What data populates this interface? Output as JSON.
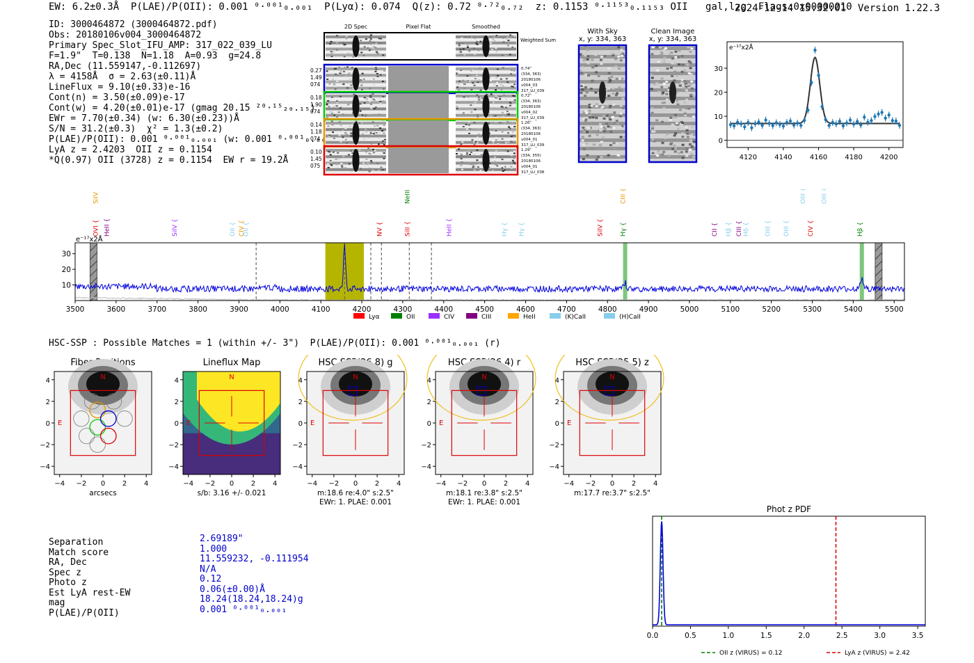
{
  "header": {
    "summary": "EW: 6.2±0.3Å  P(LAE)/P(OII): 0.001 ⁰·⁰⁰¹₀.₀₀₁  P(Lyα): 0.074  Q(z): 0.72 ⁰·⁷²₀.₇₂  z: 0.1153 ⁰·¹¹⁵³₀.₁₁₅₃ OII   gal,lzg  Flags:0x00000010",
    "datetime_version": "2024-12-14 15:32:01  Version 1.22.3"
  },
  "info_lines": [
    "ID: 3000464872 (3000464872.pdf)",
    "Obs: 20180106v004_3000464872",
    "Primary Spec_Slot_IFU_AMP: 317_022_039_LU",
    "F=1.9\"  T=0.138  N=1.18  A=0.93  g=24.8",
    "RA,Dec (11.559147,-0.112697)",
    "λ = 4158Å  σ = 2.63(±0.11)Å",
    "LineFlux = 9.10(±0.33)e-16",
    "Cont(n) = 3.50(±0.09)e-17",
    "Cont(w) = 4.20(±0.01)e-17 (gmag 20.15 ²⁰·¹⁵₂₀.₁₅)",
    "EWr = 7.70(±0.34) (w: 6.30(±0.23))Å",
    "S/N = 31.2(±0.3)  χ² = 1.3(±0.2)",
    "P(LAE)/P(OII): 0.001 ⁰·⁰⁰¹₀.₀₀₁ (w: 0.001 ⁰·⁰⁰¹₀.₀₀₁)",
    "LyA z = 2.4203  OII z = 0.1154",
    "*Q(0.97) OII (3728) z = 0.1154  EW r = 19.2Å"
  ],
  "cutouts": {
    "col_headers": [
      "2D Spec",
      "Pixel Flat",
      "Smoothed"
    ],
    "weighted_label": "Weighted Sum",
    "rows": [
      {
        "left": [
          "0.27",
          "1.49",
          "074"
        ],
        "right": [
          "0.74\"",
          "(334, 363)",
          "20180106",
          "v004_03",
          "317_LU_039"
        ],
        "color": "#0000cc"
      },
      {
        "left": [
          "0.18",
          "1.90",
          "074"
        ],
        "right": [
          "0.72\"",
          "(334, 363)",
          "20180106",
          "v004_02",
          "317_LU_039"
        ],
        "color": "#00cc00"
      },
      {
        "left": [
          "0.14",
          "1.18",
          "074"
        ],
        "right": [
          "1.26\"",
          "(334, 363)",
          "20180106",
          "v004_01",
          "317_LU_039"
        ],
        "color": "#e69500"
      },
      {
        "left": [
          "0.10",
          "1.45",
          "075"
        ],
        "right": [
          "1.29\"",
          "(334, 355)",
          "20180106",
          "v004_01",
          "317_LU_038"
        ],
        "color": "#dd0000"
      }
    ]
  },
  "sky_panels": [
    {
      "title": "With Sky",
      "coords": "x, y: 334, 363"
    },
    {
      "title": "Clean Image",
      "coords": "x, y: 334, 363"
    }
  ],
  "line_fit": {
    "units_label": "e⁻¹⁷x2Å",
    "chart_data": {
      "type": "line",
      "title": "",
      "xlabel": "",
      "ylabel": "",
      "xlim": [
        4108,
        4208
      ],
      "ylim": [
        -3,
        41
      ],
      "xticks": [
        4120,
        4140,
        4160,
        4180,
        4200
      ],
      "yticks": [
        0,
        10,
        20,
        30
      ],
      "model": {
        "continuum": 7.0,
        "center": 4158,
        "amplitude": 27.5,
        "sigma": 2.63
      },
      "points_x": [
        4110,
        4112,
        4114,
        4116,
        4118,
        4120,
        4122,
        4124,
        4126,
        4128,
        4130,
        4132,
        4134,
        4136,
        4138,
        4140,
        4142,
        4144,
        4146,
        4148,
        4150,
        4152,
        4154,
        4156,
        4158,
        4160,
        4162,
        4164,
        4166,
        4168,
        4170,
        4172,
        4174,
        4176,
        4178,
        4180,
        4182,
        4184,
        4186,
        4188,
        4190,
        4192,
        4194,
        4196,
        4198,
        4200,
        4202,
        4204,
        4206
      ],
      "points_y": [
        6.5,
        6.0,
        7.5,
        6.8,
        5.6,
        7.4,
        5.2,
        6.9,
        7.6,
        6.2,
        8.4,
        7.0,
        6.1,
        7.3,
        6.6,
        5.9,
        7.4,
        8.0,
        6.3,
        7.1,
        6.2,
        8.3,
        12.5,
        24.0,
        37.5,
        27.0,
        14.0,
        8.6,
        6.2,
        7.4,
        6.8,
        7.9,
        6.0,
        7.2,
        8.4,
        6.7,
        7.8,
        6.4,
        9.6,
        7.5,
        8.2,
        9.9,
        10.9,
        11.6,
        9.2,
        10.5,
        8.2,
        8.0,
        6.2
      ]
    }
  },
  "full_spectrum": {
    "units_label": "e⁻¹⁷x2Å",
    "chart_data": {
      "type": "line",
      "xlim": [
        3500,
        5525
      ],
      "ylim": [
        0,
        37
      ],
      "xticks": [
        3500,
        3600,
        3700,
        3800,
        3900,
        4000,
        4100,
        4200,
        4300,
        4400,
        4500,
        4600,
        4700,
        4800,
        4900,
        5000,
        5100,
        5200,
        5300,
        5400,
        5500
      ],
      "yticks": [
        10,
        20,
        30
      ],
      "baseline": 7.5,
      "emission_lines": [
        {
          "center": 4158,
          "amplitude": 27.5,
          "sigma": 2.6
        },
        {
          "center": 4843,
          "amplitude": 4.0,
          "sigma": 3
        },
        {
          "center": 5421,
          "amplitude": 7.0,
          "sigma": 3
        }
      ],
      "highlight_region": [
        4111,
        4205
      ],
      "dashed_lines": [
        3942,
        4158,
        4222,
        4248,
        4316,
        4370
      ],
      "green_bands": [
        4843,
        5421
      ],
      "hatched_bands": [
        3545,
        5462
      ]
    },
    "line_labels": [
      {
        "label": "SiIV",
        "wave": 3555,
        "row": 0,
        "color": "#e69500"
      },
      {
        "label": "NeIII",
        "wave": 4316,
        "row": 0,
        "color": "#008000"
      },
      {
        "label": "CIII",
        "wave": 4843,
        "row": 0,
        "color": "#e69500"
      },
      {
        "label": "OIII",
        "wave": 5282,
        "row": 0,
        "color": "#87ceeb"
      },
      {
        "label": "OIII",
        "wave": 5334,
        "row": 0,
        "color": "#87ceeb"
      },
      {
        "label": "OVI",
        "wave": 3555,
        "row": 1,
        "color": "#dd0000"
      },
      {
        "label": "HeII",
        "wave": 3582,
        "row": 1,
        "color": "#800080"
      },
      {
        "label": "SiIV",
        "wave": 3748,
        "row": 1,
        "color": "#9b30ff"
      },
      {
        "label": "OII",
        "wave": 3889,
        "row": 1,
        "color": "#87ceeb"
      },
      {
        "label": "CIV",
        "wave": 3911,
        "row": 1,
        "color": "#e69500"
      },
      {
        "label": "OII",
        "wave": 3922,
        "row": 1,
        "color": "#87ceeb"
      },
      {
        "label": "NV",
        "wave": 4248,
        "row": 1,
        "color": "#dd0000"
      },
      {
        "label": "SiII",
        "wave": 4316,
        "row": 1,
        "color": "#dd0000"
      },
      {
        "label": "HeII",
        "wave": 4418,
        "row": 1,
        "color": "#9b30ff"
      },
      {
        "label": "Hγ",
        "wave": 4553,
        "row": 1,
        "color": "#87ceeb"
      },
      {
        "label": "Hγ",
        "wave": 4595,
        "row": 1,
        "color": "#87ceeb"
      },
      {
        "label": "SiIV",
        "wave": 4787,
        "row": 1,
        "color": "#dd0000"
      },
      {
        "label": "Hγ",
        "wave": 4843,
        "row": 1,
        "color": "#008000"
      },
      {
        "label": "CII",
        "wave": 5066,
        "row": 1,
        "color": "#800080"
      },
      {
        "label": "Hβ",
        "wave": 5100,
        "row": 1,
        "color": "#87ceeb"
      },
      {
        "label": "CIII",
        "wave": 5126,
        "row": 1,
        "color": "#800080"
      },
      {
        "label": "Hδ",
        "wave": 5143,
        "row": 1,
        "color": "#87ceeb"
      },
      {
        "label": "OIII",
        "wave": 5196,
        "row": 1,
        "color": "#87ceeb"
      },
      {
        "label": "OIII",
        "wave": 5241,
        "row": 1,
        "color": "#87ceeb"
      },
      {
        "label": "CIV",
        "wave": 5301,
        "row": 1,
        "color": "#dd0000"
      },
      {
        "label": "Hβ",
        "wave": 5421,
        "row": 1,
        "color": "#008000"
      }
    ],
    "legend": [
      {
        "label": "Lyα",
        "color": "#ff0000"
      },
      {
        "label": "OII",
        "color": "#008000"
      },
      {
        "label": "CIV",
        "color": "#9b30ff"
      },
      {
        "label": "CIII",
        "color": "#800080"
      },
      {
        "label": "HeII",
        "color": "#ffa500"
      },
      {
        "label": "(K)CaII",
        "color": "#87ceeb"
      },
      {
        "label": "(H)CaII",
        "color": "#87ceeb"
      }
    ]
  },
  "hsc": {
    "summary": "HSC-SSP : Possible Matches = 1 (within +/- 3\")  P(LAE)/P(OII): 0.001 ⁰·⁰⁰¹₀.₀₀₁ (r)",
    "ticks": [
      "−4",
      "−2",
      "0",
      "2",
      "4"
    ],
    "compass": {
      "north": "N",
      "east": "E"
    },
    "panels": [
      {
        "title": "Fiber Positions",
        "caption1": "arcsecs",
        "caption2": ""
      },
      {
        "title": "Lineflux Map",
        "caption1": "s/b: 3.16 +/- 0.021",
        "caption2": ""
      },
      {
        "title": "HSC SSP(26.8) g",
        "caption1": "m:18.6  re:4.0\"  s:2.5\"",
        "caption2": "EWr: 1. PLAE: 0.001"
      },
      {
        "title": "HSC SSP(26.4) r",
        "caption1": "m:18.1  re:3.8\"  s:2.5\"",
        "caption2": "EWr: 1. PLAE: 0.001"
      },
      {
        "title": "HSC SSP(25.5) z",
        "caption1": "m:17.7  re:3.7\"  s:2.5\"",
        "caption2": ""
      }
    ]
  },
  "match_table": {
    "labels": [
      "Separation",
      "Match score",
      "RA, Dec",
      "Spec z",
      "Photo z",
      "Est LyA rest-EW",
      "mag",
      "P(LAE)/P(OII)"
    ],
    "values": [
      "2.69189\"",
      "1.000",
      "11.559232, -0.111954",
      "N/A",
      "0.12",
      "0.06(±0.00)Å",
      "18.24(18.24,18.24)g",
      "0.001 ⁰·⁰⁰¹₀.₀₀₁"
    ]
  },
  "photz": {
    "title": "Phot z PDF",
    "chart_data": {
      "type": "line",
      "xlim": [
        0,
        3.6
      ],
      "ylim": [
        0,
        1.05
      ],
      "xticks": [
        0.0,
        0.5,
        1.0,
        1.5,
        2.0,
        2.5,
        3.0,
        3.5
      ],
      "xtick_labels": [
        "0.0",
        "0.5",
        "1.0",
        "1.5",
        "2.0",
        "2.5",
        "3.0",
        "3.5"
      ],
      "peak_z": 0.12,
      "peak_sigma": 0.018,
      "floor": 0.013,
      "oii_z": 0.12,
      "lya_z": 2.42
    },
    "legend": [
      {
        "label": "OII z (VIRUS) = 0.12",
        "color": "#008000"
      },
      {
        "label": "LyA z (VIRUS) = 2.42",
        "color": "#dd0000"
      }
    ]
  }
}
